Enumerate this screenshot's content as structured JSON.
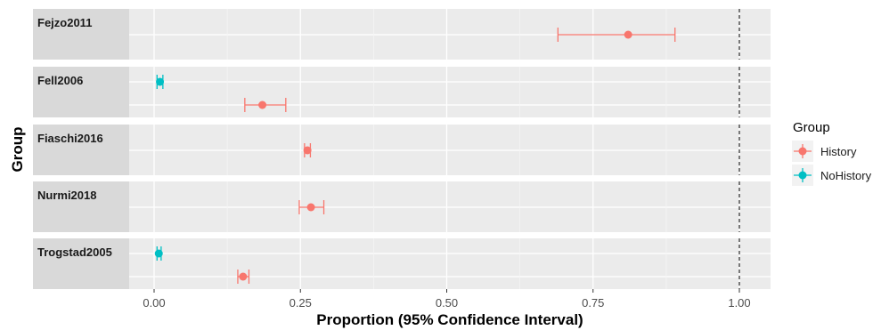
{
  "chart_data": {
    "type": "scatter",
    "subtype": "forest-plot-with-error-bars",
    "xlabel": "Proportion (95% Confidence Interval)",
    "ylabel": "Group",
    "xlim": [
      -0.05,
      1.04
    ],
    "xticks": [
      "0.00",
      "0.25",
      "0.50",
      "0.75",
      "1.00"
    ],
    "xtick_values": [
      0,
      0.25,
      0.5,
      0.75,
      1.0
    ],
    "reference_line": 1.0,
    "reference_line_style": "dashed",
    "grid": true,
    "legend": {
      "title": "Group",
      "position": "right",
      "entries": [
        {
          "name": "History",
          "color": "#F8766D"
        },
        {
          "name": "NoHistory",
          "color": "#00BFC4"
        }
      ]
    },
    "facets": [
      {
        "label": "Fejzo2011",
        "points": [
          {
            "group": "History",
            "estimate": 0.81,
            "lower": 0.69,
            "upper": 0.89
          }
        ]
      },
      {
        "label": "Fell2006",
        "points": [
          {
            "group": "NoHistory",
            "estimate": 0.01,
            "lower": 0.005,
            "upper": 0.015
          },
          {
            "group": "History",
            "estimate": 0.185,
            "lower": 0.155,
            "upper": 0.225
          }
        ]
      },
      {
        "label": "Fiaschi2016",
        "points": [
          {
            "group": "History",
            "estimate": 0.262,
            "lower": 0.257,
            "upper": 0.267
          }
        ]
      },
      {
        "label": "Nurmi2018",
        "points": [
          {
            "group": "History",
            "estimate": 0.268,
            "lower": 0.248,
            "upper": 0.29
          }
        ]
      },
      {
        "label": "Trogstad2005",
        "points": [
          {
            "group": "NoHistory",
            "estimate": 0.008,
            "lower": 0.005,
            "upper": 0.012
          },
          {
            "group": "History",
            "estimate": 0.152,
            "lower": 0.143,
            "upper": 0.162
          }
        ]
      }
    ]
  }
}
